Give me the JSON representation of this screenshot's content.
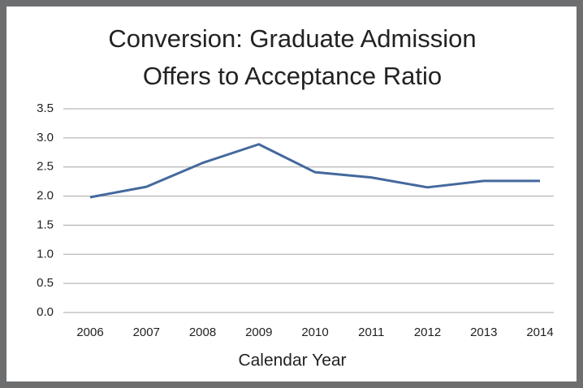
{
  "chart_data": {
    "type": "line",
    "title": [
      "Conversion: Graduate Admission",
      "Offers to Acceptance Ratio"
    ],
    "x_label": "Calendar Year",
    "categories": [
      "2006",
      "2007",
      "2008",
      "2009",
      "2010",
      "2011",
      "2012",
      "2013",
      "2014"
    ],
    "series": [
      {
        "color": "#44699d",
        "values": [
          1.98,
          2.16,
          2.57,
          2.89,
          2.41,
          2.32,
          2.15,
          2.26,
          2.26
        ]
      }
    ],
    "ylim": [
      0,
      3.5
    ],
    "yticks": [
      {
        "value": 0,
        "label": "0.0"
      },
      0.5,
      {
        "value": 1,
        "label": "1.0"
      },
      1.5,
      {
        "value": 2,
        "label": "2.0"
      },
      2.5,
      {
        "value": 3,
        "label": "3.0"
      },
      3.5
    ],
    "grid": true
  }
}
